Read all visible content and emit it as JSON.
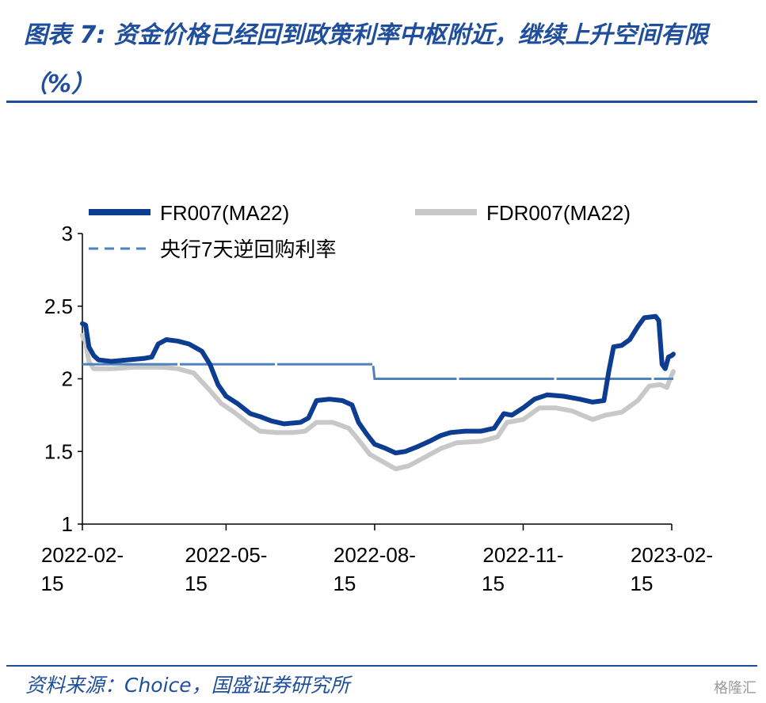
{
  "header": {
    "title": "图表 7: 资金价格已经回到政策利率中枢附近，继续上升空间有限（%）"
  },
  "footer": {
    "source": "资料来源：Choice，国盛证券研究所",
    "watermark": "格隆汇"
  },
  "colors": {
    "title": "#1f4e9d",
    "fr007": "#0d3d91",
    "fdr007": "#c8c8c8",
    "policy": "#4f81bd"
  },
  "chart_data": {
    "type": "line",
    "title": "",
    "xlabel": "",
    "ylabel": "",
    "ylim": [
      1,
      3
    ],
    "yticks": [
      "1",
      "1.5",
      "2",
      "2.5",
      "3"
    ],
    "xticks": [
      {
        "date": "2022-02-15",
        "line1": "2022-02-",
        "line2": "15"
      },
      {
        "date": "2022-05-15",
        "line1": "2022-05-",
        "line2": "15"
      },
      {
        "date": "2022-08-15",
        "line1": "2022-08-",
        "line2": "15"
      },
      {
        "date": "2022-11-15",
        "line1": "2022-11-",
        "line2": "15"
      },
      {
        "date": "2023-02-15",
        "line1": "2023-02-",
        "line2": "15"
      }
    ],
    "grid": false,
    "legend_position": "top",
    "series": [
      {
        "name": "FR007(MA22)",
        "style": "solid-thick",
        "points": [
          [
            "2022-02-15",
            2.38
          ],
          [
            "2022-02-17",
            2.37
          ],
          [
            "2022-02-19",
            2.22
          ],
          [
            "2022-02-22",
            2.16
          ],
          [
            "2022-02-25",
            2.13
          ],
          [
            "2022-03-05",
            2.12
          ],
          [
            "2022-03-15",
            2.13
          ],
          [
            "2022-03-25",
            2.14
          ],
          [
            "2022-03-30",
            2.15
          ],
          [
            "2022-04-03",
            2.24
          ],
          [
            "2022-04-08",
            2.27
          ],
          [
            "2022-04-15",
            2.26
          ],
          [
            "2022-04-22",
            2.24
          ],
          [
            "2022-04-30",
            2.19
          ],
          [
            "2022-05-05",
            2.1
          ],
          [
            "2022-05-10",
            1.96
          ],
          [
            "2022-05-15",
            1.88
          ],
          [
            "2022-05-22",
            1.83
          ],
          [
            "2022-05-30",
            1.76
          ],
          [
            "2022-06-05",
            1.74
          ],
          [
            "2022-06-12",
            1.71
          ],
          [
            "2022-06-20",
            1.69
          ],
          [
            "2022-06-30",
            1.7
          ],
          [
            "2022-07-05",
            1.73
          ],
          [
            "2022-07-10",
            1.85
          ],
          [
            "2022-07-18",
            1.86
          ],
          [
            "2022-07-26",
            1.85
          ],
          [
            "2022-08-01",
            1.82
          ],
          [
            "2022-08-05",
            1.7
          ],
          [
            "2022-08-10",
            1.62
          ],
          [
            "2022-08-15",
            1.55
          ],
          [
            "2022-08-22",
            1.52
          ],
          [
            "2022-08-28",
            1.49
          ],
          [
            "2022-09-03",
            1.5
          ],
          [
            "2022-09-10",
            1.53
          ],
          [
            "2022-09-18",
            1.57
          ],
          [
            "2022-09-25",
            1.61
          ],
          [
            "2022-10-01",
            1.63
          ],
          [
            "2022-10-10",
            1.64
          ],
          [
            "2022-10-20",
            1.64
          ],
          [
            "2022-10-28",
            1.66
          ],
          [
            "2022-11-03",
            1.76
          ],
          [
            "2022-11-08",
            1.75
          ],
          [
            "2022-11-15",
            1.8
          ],
          [
            "2022-11-22",
            1.86
          ],
          [
            "2022-11-30",
            1.89
          ],
          [
            "2022-12-10",
            1.88
          ],
          [
            "2022-12-20",
            1.86
          ],
          [
            "2022-12-28",
            1.84
          ],
          [
            "2023-01-04",
            1.85
          ],
          [
            "2023-01-07",
            2.05
          ],
          [
            "2023-01-10",
            2.22
          ],
          [
            "2023-01-15",
            2.23
          ],
          [
            "2023-01-20",
            2.27
          ],
          [
            "2023-01-25",
            2.36
          ],
          [
            "2023-01-29",
            2.42
          ],
          [
            "2023-02-05",
            2.43
          ],
          [
            "2023-02-07",
            2.4
          ],
          [
            "2023-02-09",
            2.1
          ],
          [
            "2023-02-11",
            2.07
          ],
          [
            "2023-02-13",
            2.15
          ],
          [
            "2023-02-15",
            2.16
          ],
          [
            "2023-02-16",
            2.17
          ]
        ]
      },
      {
        "name": "FDR007(MA22)",
        "style": "solid-gray",
        "points": [
          [
            "2022-02-15",
            2.3
          ],
          [
            "2022-02-17",
            2.25
          ],
          [
            "2022-02-19",
            2.12
          ],
          [
            "2022-02-22",
            2.07
          ],
          [
            "2022-03-05",
            2.07
          ],
          [
            "2022-03-20",
            2.08
          ],
          [
            "2022-04-05",
            2.08
          ],
          [
            "2022-04-15",
            2.07
          ],
          [
            "2022-04-25",
            2.04
          ],
          [
            "2022-05-05",
            1.92
          ],
          [
            "2022-05-12",
            1.83
          ],
          [
            "2022-05-20",
            1.77
          ],
          [
            "2022-05-28",
            1.7
          ],
          [
            "2022-06-05",
            1.64
          ],
          [
            "2022-06-15",
            1.63
          ],
          [
            "2022-06-25",
            1.63
          ],
          [
            "2022-07-03",
            1.64
          ],
          [
            "2022-07-10",
            1.7
          ],
          [
            "2022-07-20",
            1.7
          ],
          [
            "2022-07-30",
            1.66
          ],
          [
            "2022-08-05",
            1.58
          ],
          [
            "2022-08-12",
            1.48
          ],
          [
            "2022-08-20",
            1.43
          ],
          [
            "2022-08-28",
            1.38
          ],
          [
            "2022-09-05",
            1.4
          ],
          [
            "2022-09-15",
            1.46
          ],
          [
            "2022-09-25",
            1.52
          ],
          [
            "2022-10-05",
            1.56
          ],
          [
            "2022-10-20",
            1.57
          ],
          [
            "2022-10-30",
            1.6
          ],
          [
            "2022-11-05",
            1.7
          ],
          [
            "2022-11-15",
            1.72
          ],
          [
            "2022-11-25",
            1.8
          ],
          [
            "2022-12-05",
            1.8
          ],
          [
            "2022-12-15",
            1.78
          ],
          [
            "2022-12-28",
            1.72
          ],
          [
            "2023-01-05",
            1.75
          ],
          [
            "2023-01-15",
            1.77
          ],
          [
            "2023-01-25",
            1.85
          ],
          [
            "2023-02-01",
            1.95
          ],
          [
            "2023-02-08",
            1.96
          ],
          [
            "2023-02-12",
            1.94
          ],
          [
            "2023-02-14",
            2.0
          ],
          [
            "2023-02-16",
            2.05
          ]
        ]
      },
      {
        "name": "央行7天逆回购利率",
        "style": "dashed-step",
        "points": [
          [
            "2022-02-15",
            2.1
          ],
          [
            "2022-08-14",
            2.1
          ],
          [
            "2022-08-15",
            2.0
          ],
          [
            "2023-02-16",
            2.0
          ]
        ]
      }
    ]
  }
}
